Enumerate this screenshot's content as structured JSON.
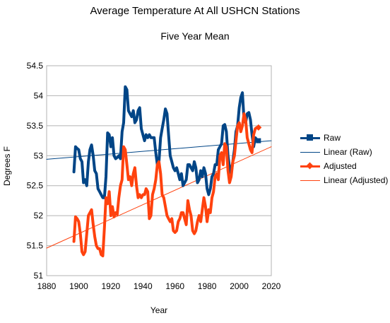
{
  "chart_data": {
    "type": "line",
    "title": "Average Temperature At All USHCN Stations",
    "subtitle": "Five Year Mean",
    "xlabel": "Year",
    "ylabel": "Degrees F",
    "xlim": [
      1880,
      2020
    ],
    "ylim": [
      51,
      54.5
    ],
    "x_ticks": [
      "1880",
      "1900",
      "1920",
      "1940",
      "1960",
      "1980",
      "2000",
      "2020"
    ],
    "y_ticks": [
      "51",
      "51.5",
      "52",
      "52.5",
      "53",
      "53.5",
      "54",
      "54.5"
    ],
    "grid": "horizontal",
    "legend_position": "right",
    "series": [
      {
        "name": "Raw",
        "color": "#004586",
        "marker": "square",
        "x": [
          1897,
          1898,
          1899,
          1900,
          1901,
          1902,
          1903,
          1904,
          1905,
          1906,
          1907,
          1908,
          1909,
          1910,
          1911,
          1912,
          1913,
          1914,
          1915,
          1916,
          1917,
          1918,
          1919,
          1920,
          1921,
          1922,
          1923,
          1924,
          1925,
          1926,
          1927,
          1928,
          1929,
          1930,
          1931,
          1932,
          1933,
          1934,
          1935,
          1936,
          1937,
          1938,
          1939,
          1940,
          1941,
          1942,
          1943,
          1944,
          1945,
          1946,
          1947,
          1948,
          1949,
          1950,
          1951,
          1952,
          1953,
          1954,
          1955,
          1956,
          1957,
          1958,
          1959,
          1960,
          1961,
          1962,
          1963,
          1964,
          1965,
          1966,
          1967,
          1968,
          1969,
          1970,
          1971,
          1972,
          1973,
          1974,
          1975,
          1976,
          1977,
          1978,
          1979,
          1980,
          1981,
          1982,
          1983,
          1984,
          1985,
          1986,
          1987,
          1988,
          1989,
          1990,
          1991,
          1992,
          1993,
          1994,
          1995,
          1996,
          1997,
          1998,
          1999,
          2000,
          2001,
          2002,
          2003,
          2004,
          2005,
          2006,
          2007,
          2008,
          2009,
          2010,
          2011,
          2012
        ],
        "y": [
          52.73,
          53.15,
          53.12,
          53.1,
          52.95,
          52.9,
          52.55,
          52.6,
          52.5,
          52.9,
          53.1,
          53.18,
          53.0,
          52.75,
          52.7,
          52.45,
          52.4,
          52.35,
          52.3,
          52.3,
          52.65,
          53.38,
          53.35,
          53.15,
          53.3,
          53.0,
          52.95,
          52.97,
          53.0,
          52.95,
          53.4,
          53.55,
          54.15,
          54.1,
          53.75,
          53.7,
          53.65,
          53.75,
          53.55,
          53.6,
          53.75,
          53.8,
          53.45,
          53.35,
          53.25,
          53.35,
          53.3,
          53.35,
          53.3,
          53.3,
          53.3,
          53.05,
          52.85,
          52.9,
          53.3,
          53.45,
          53.6,
          53.78,
          53.7,
          53.35,
          53.0,
          52.9,
          52.8,
          52.75,
          52.8,
          52.7,
          52.6,
          52.7,
          52.5,
          52.55,
          52.6,
          52.85,
          52.85,
          52.8,
          52.75,
          52.9,
          52.8,
          52.55,
          52.6,
          52.75,
          52.65,
          52.8,
          52.7,
          52.45,
          52.35,
          52.45,
          52.65,
          52.7,
          52.85,
          52.85,
          53.1,
          53.15,
          53.2,
          53.5,
          53.52,
          53.4,
          53.0,
          52.8,
          52.7,
          52.9,
          53.1,
          53.4,
          53.5,
          53.8,
          53.97,
          54.05,
          53.6,
          53.55,
          53.7,
          53.72,
          53.6,
          53.35,
          53.15,
          53.3,
          53.27,
          53.25
        ],
        "linewidth": 4
      },
      {
        "name": "Adjusted",
        "color": "#ff420e",
        "marker": "diamond",
        "x": [
          1897,
          1898,
          1899,
          1900,
          1901,
          1902,
          1903,
          1904,
          1905,
          1906,
          1907,
          1908,
          1909,
          1910,
          1911,
          1912,
          1913,
          1914,
          1915,
          1916,
          1917,
          1918,
          1919,
          1920,
          1921,
          1922,
          1923,
          1924,
          1925,
          1926,
          1927,
          1928,
          1929,
          1930,
          1931,
          1932,
          1933,
          1934,
          1935,
          1936,
          1937,
          1938,
          1939,
          1940,
          1941,
          1942,
          1943,
          1944,
          1945,
          1946,
          1947,
          1948,
          1949,
          1950,
          1951,
          1952,
          1953,
          1954,
          1955,
          1956,
          1957,
          1958,
          1959,
          1960,
          1961,
          1962,
          1963,
          1964,
          1965,
          1966,
          1967,
          1968,
          1969,
          1970,
          1971,
          1972,
          1973,
          1974,
          1975,
          1976,
          1977,
          1978,
          1979,
          1980,
          1981,
          1982,
          1983,
          1984,
          1985,
          1986,
          1987,
          1988,
          1989,
          1990,
          1991,
          1992,
          1993,
          1994,
          1995,
          1996,
          1997,
          1998,
          1999,
          2000,
          2001,
          2002,
          2003,
          2004,
          2005,
          2006,
          2007,
          2008,
          2009,
          2010,
          2011,
          2012
        ],
        "y": [
          51.57,
          51.98,
          51.95,
          51.9,
          51.7,
          51.4,
          51.35,
          51.4,
          51.7,
          52.0,
          52.05,
          52.1,
          51.85,
          51.65,
          51.5,
          51.45,
          51.45,
          51.35,
          51.33,
          51.8,
          52.3,
          52.2,
          52.4,
          52.0,
          52.15,
          51.98,
          52.05,
          52.02,
          52.3,
          52.5,
          52.6,
          53.15,
          53.1,
          52.85,
          52.6,
          52.65,
          52.5,
          52.7,
          52.8,
          52.5,
          52.3,
          52.35,
          52.3,
          52.35,
          52.35,
          52.45,
          52.4,
          51.95,
          52.0,
          52.35,
          52.45,
          52.6,
          52.85,
          52.9,
          52.7,
          52.35,
          52.3,
          52.15,
          52.0,
          51.95,
          51.9,
          51.95,
          51.75,
          51.72,
          51.75,
          51.9,
          51.95,
          52.05,
          52.05,
          51.95,
          51.85,
          52.25,
          52.1,
          52.0,
          51.75,
          51.7,
          51.75,
          51.9,
          52.0,
          51.9,
          52.1,
          52.3,
          52.15,
          51.9,
          52.1,
          52.05,
          52.3,
          52.4,
          52.65,
          52.7,
          52.6,
          53.0,
          53.05,
          52.85,
          53.2,
          53.15,
          52.75,
          52.55,
          52.65,
          52.9,
          53.0,
          53.25,
          53.5,
          53.55,
          53.4,
          53.5,
          53.7,
          53.6,
          53.3,
          53.2,
          53.1,
          53.05,
          53.35,
          53.45,
          53.47,
          53.47
        ],
        "linewidth": 4
      },
      {
        "name": "Linear (Raw)",
        "color": "#004586",
        "type": "trend",
        "x": [
          1880,
          2020
        ],
        "y": [
          52.94,
          53.25
        ],
        "linewidth": 1
      },
      {
        "name": "Linear (Adjusted)",
        "color": "#ff420e",
        "type": "trend",
        "x": [
          1880,
          2020
        ],
        "y": [
          51.46,
          53.15
        ],
        "linewidth": 1
      }
    ]
  },
  "legend": {
    "items": [
      {
        "label": "Raw",
        "color": "#004586",
        "kind": "series-square"
      },
      {
        "label": "Linear (Raw)",
        "color": "#004586",
        "kind": "trend"
      },
      {
        "label": "Adjusted",
        "color": "#ff420e",
        "kind": "series-diamond"
      },
      {
        "label": "Linear (Adjusted)",
        "color": "#ff420e",
        "kind": "trend"
      }
    ]
  }
}
